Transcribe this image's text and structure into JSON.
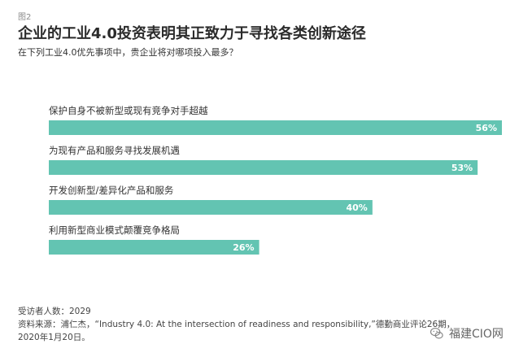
{
  "figure_label": "图2",
  "title": "企业的工业4.0投资表明其正致力于寻找各类创新途径",
  "subtitle": "在下列工业4.0优先事项中，贵企业将对哪项投入最多？",
  "chart_data": {
    "type": "bar",
    "orientation": "horizontal",
    "categories": [
      "保护自身不被新型或现有竞争对手超越",
      "为现有产品和服务寻找发展机遇",
      "开发创新型/差异化产品和服务",
      "利用新型商业模式颠覆竞争格局"
    ],
    "values": [
      56,
      53,
      40,
      26
    ],
    "value_labels": [
      "56%",
      "53%",
      "40%",
      "26%"
    ],
    "unit": "%",
    "xlim": [
      0,
      56
    ],
    "bar_color": "#63c4b2",
    "grid": false,
    "legend": "none"
  },
  "footer": {
    "respondents": "受访者人数：2029",
    "source_line1": "资料来源：浦仁杰，“Industry 4.0: At the intersection of readiness and responsibility,”德勤商业评论26期，",
    "source_line2": "2020年1月20日。"
  },
  "watermark": {
    "icon": "wechat-icon",
    "text": "福建CIO网"
  }
}
